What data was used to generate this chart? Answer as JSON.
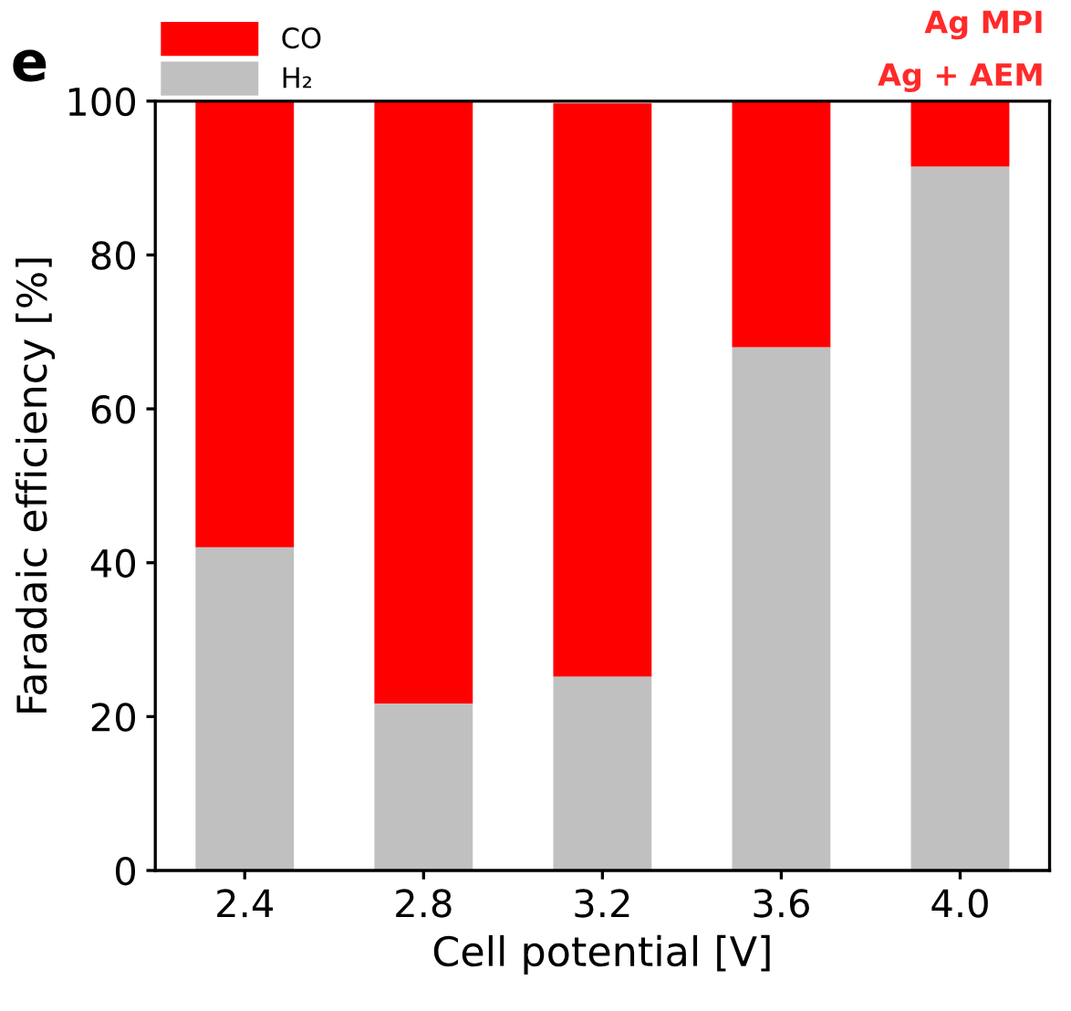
{
  "chart_data": {
    "type": "bar",
    "stacked": true,
    "xlabel": "Cell potential [V]",
    "ylabel": "Faradaic efficiency [%]",
    "categories": [
      "2.4",
      "2.8",
      "3.2",
      "3.6",
      "4.0"
    ],
    "series": [
      {
        "name": "H₂",
        "color": "#c0c0c0",
        "values": [
          42,
          21.7,
          25.2,
          68,
          91.5
        ]
      },
      {
        "name": "CO",
        "color": "#ff0000",
        "values": [
          58,
          78.3,
          74.5,
          32,
          8.5
        ]
      }
    ],
    "ylim": [
      0,
      100
    ],
    "yticks": [
      0,
      20,
      40,
      60,
      80,
      100
    ],
    "grid": false,
    "legend": "top left",
    "annotations": [
      "e",
      "Ag MPI",
      "Ag + AEM"
    ]
  }
}
